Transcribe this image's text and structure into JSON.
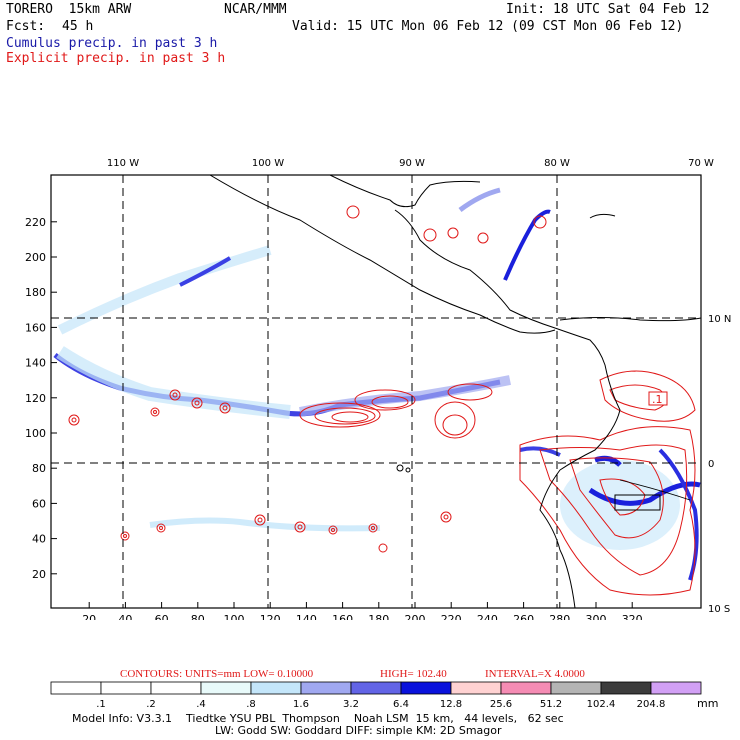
{
  "header": {
    "model": "TORERO  15km ARW",
    "org": "NCAR/MMM",
    "init": "Init: 18 UTC Sat 04 Feb 12",
    "fcst_label": "Fcst:",
    "fcst_value": "45 h",
    "valid": "Valid: 15 UTC Mon 06 Feb 12 (09 CST Mon 06 Feb 12)",
    "cumulus": "Cumulus precip. in past 3 h",
    "explicit": "Explicit precip. in past 3 h"
  },
  "map": {
    "lon_labels": [
      "110 W",
      "100 W",
      "90 W",
      "80 W",
      "70 W"
    ],
    "lat_labels": [
      "10 N",
      "0",
      "10 S"
    ],
    "x_ticks": [
      "20",
      "40",
      "60",
      "80",
      "100",
      "120",
      "140",
      "160",
      "180",
      "200",
      "220",
      "240",
      "260",
      "280",
      "300",
      "320"
    ],
    "y_ticks": [
      "20",
      "40",
      "60",
      "80",
      "100",
      "120",
      "140",
      "160",
      "180",
      "200",
      "220"
    ],
    "box_label": ".1"
  },
  "contours": {
    "label": "CONTOURS:  UNITS=mm  LOW= 0.10000",
    "high": "HIGH=  102.40",
    "interval": "INTERVAL=X  4.0000"
  },
  "legend": {
    "values": [
      ".1",
      ".2",
      ".4",
      ".8",
      "1.6",
      "3.2",
      "6.4",
      "12.8",
      "25.6",
      "51.2",
      "102.4",
      "204.8"
    ],
    "unit": "mm",
    "colors": [
      "#ffffff",
      "#ffffff",
      "#ffffff",
      "#e8fafa",
      "#c4e6fa",
      "#a0a8f0",
      "#6264e6",
      "#0a12dc",
      "#ffd2d2",
      "#f58cb4",
      "#b4b4b4",
      "#3c3c3c",
      "#d2a0f5"
    ]
  },
  "footer": {
    "line1": "Model Info: V3.3.1    Tiedtke YSU PBL  Thompson    Noah LSM  15 km,   44 levels,   62 sec",
    "line2": "LW: Godd SW: Goddard DIFF: simple KM: 2D Smagor"
  }
}
